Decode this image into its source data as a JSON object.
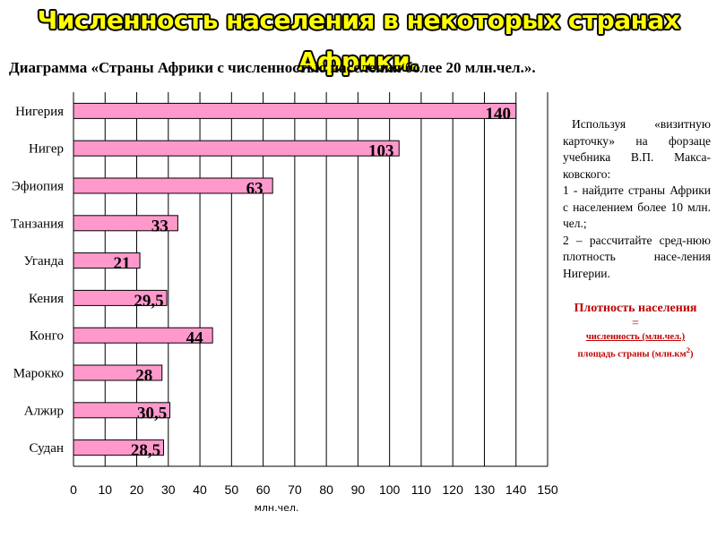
{
  "title": "Численность населения в некоторых странах Африки.",
  "caption": "Диаграмма «Страны Африки с численностью населения более 20 млн.чел.».",
  "side_panel": {
    "intro": "Используя «визитную карточку» на форзаце учебника В.П. Макса-ковского:",
    "task1": "1 - найдите страны Африки с населением более 10 млн. чел.;",
    "task2": "2 – рассчитайте сред-нюю плотность насе-ления Нигерии.",
    "formula_title": "Плотность населения",
    "formula_eq": "=",
    "formula_numerator": "численность (млн.чел.)",
    "formula_denominator": "площадь страны (млн.км",
    "formula_sup": "2",
    "formula_close": ")"
  },
  "colors": {
    "title": "#ffff00",
    "bar": "#ff99cc",
    "formula": "#c00000"
  },
  "chart_data": {
    "type": "bar",
    "orientation": "horizontal",
    "categories": [
      "Нигерия",
      "Нигер",
      "Эфиопия",
      "Танзания",
      "Уганда",
      "Кения",
      "Конго",
      "Марокко",
      "Алжир",
      "Судан"
    ],
    "values": [
      140,
      103,
      63,
      33,
      21,
      29.5,
      44,
      28,
      30.5,
      28.5
    ],
    "data_labels": [
      "140",
      "103",
      "63",
      "33",
      "21",
      "29,5",
      "44",
      "28",
      "30,5",
      "28,5"
    ],
    "xlabel": "млн.чел.",
    "xlim": [
      0,
      150
    ],
    "xticks": [
      0,
      10,
      20,
      30,
      40,
      50,
      60,
      70,
      80,
      90,
      100,
      110,
      120,
      130,
      140,
      150
    ],
    "grid": "vertical"
  }
}
